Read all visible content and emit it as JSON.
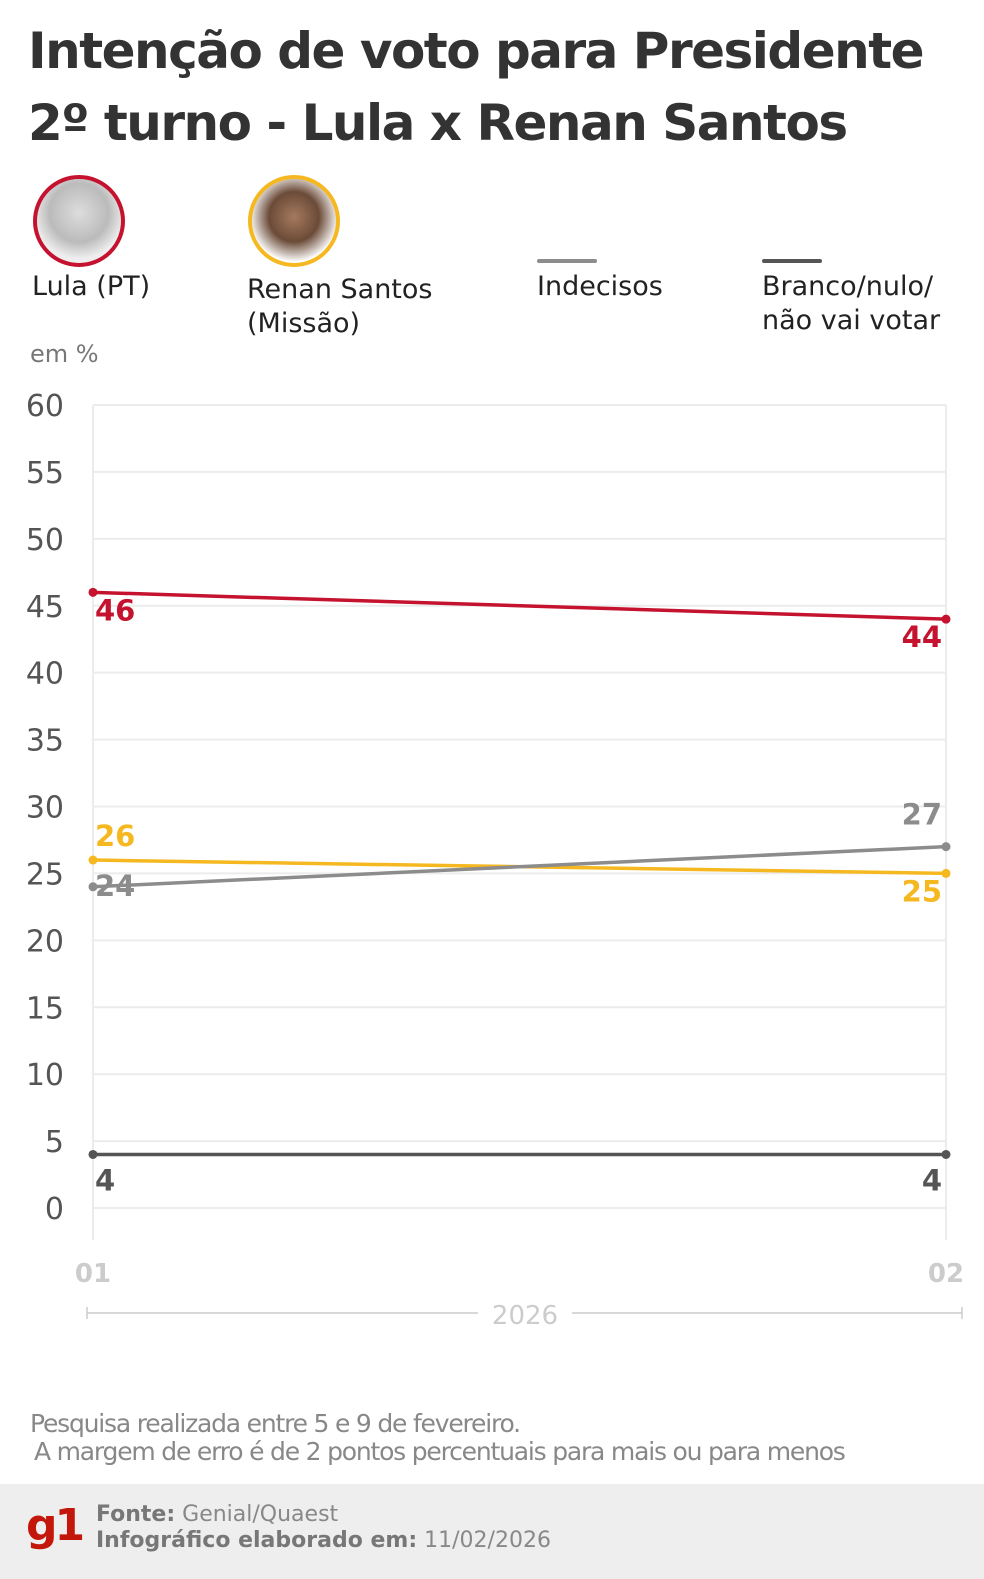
{
  "title_line1": "Intenção de voto para Presidente",
  "title_line2": "2º turno - Lula x Renan Santos",
  "unit": "em %",
  "note_line1": "Pesquisa realizada entre 5 e 9 de fevereiro.",
  "note_line2": "A margem de erro é de 2 pontos percentuais para mais ou para menos",
  "footer": {
    "logo": "g1",
    "source_label": "Fonte:",
    "source": "Genial/Quaest",
    "date_label": "Infográfico elaborado em:",
    "date": "11/02/2026"
  },
  "legend": [
    {
      "label": "Lula (PT)",
      "color": "#c4122f",
      "icon": "candidate-photo"
    },
    {
      "label1": "Renan Santos",
      "label2": "(Missão)",
      "color": "#f5b820",
      "icon": "candidate-photo"
    },
    {
      "label": "Indecisos",
      "color": "#8c8c8c"
    },
    {
      "label1": "Branco/nulo/",
      "label2": "não vai votar",
      "color": "#555555"
    }
  ],
  "chart_data": {
    "type": "line",
    "x": [
      "01",
      "02"
    ],
    "xlabel": "2026",
    "ylim": [
      0,
      60
    ],
    "yticks": [
      0,
      5,
      10,
      15,
      20,
      25,
      30,
      35,
      40,
      45,
      50,
      55,
      60
    ],
    "grid": true,
    "legend_placement": "top",
    "series": [
      {
        "name": "Lula (PT)",
        "color": "#c4122f",
        "values": [
          46,
          44
        ]
      },
      {
        "name": "Renan Santos (Missão)",
        "color": "#f5b820",
        "values": [
          26,
          25
        ]
      },
      {
        "name": "Indecisos",
        "color": "#8c8c8c",
        "values": [
          24,
          27
        ]
      },
      {
        "name": "Branco/nulo/não vai votar",
        "color": "#555555",
        "values": [
          4,
          4
        ]
      }
    ]
  }
}
